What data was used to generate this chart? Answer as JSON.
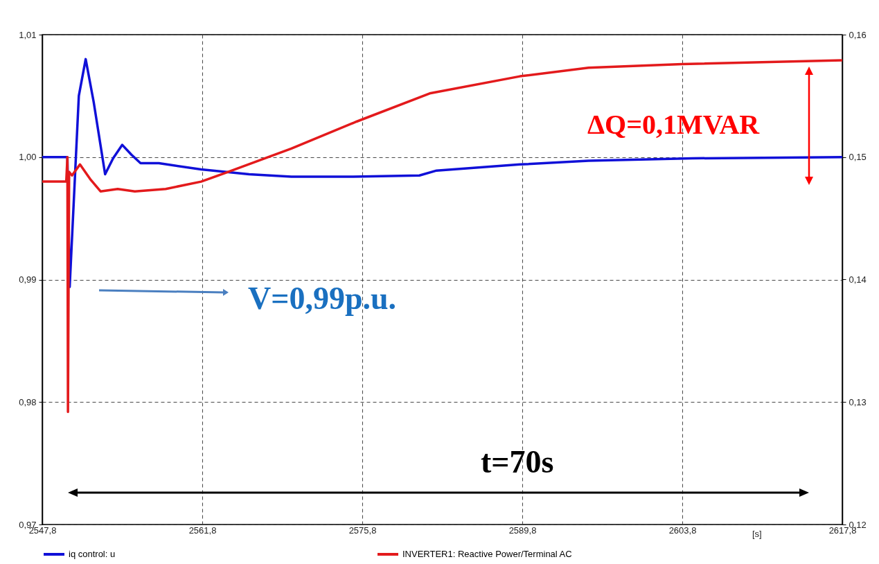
{
  "chart_data": {
    "type": "line",
    "xlabel": "[s]",
    "xlim": [
      2547.8,
      2617.8
    ],
    "xticks": [
      {
        "value": 2547.8,
        "label": "2547,8"
      },
      {
        "value": 2561.8,
        "label": "2561,8"
      },
      {
        "value": 2575.8,
        "label": "2575,8"
      },
      {
        "value": 2589.8,
        "label": "2589,8"
      },
      {
        "value": 2603.8,
        "label": "2603,8"
      },
      {
        "value": 2617.8,
        "label": "2617,8"
      }
    ],
    "ylim": [
      0.97,
      1.01
    ],
    "yticks": [
      {
        "value": 0.97,
        "label": "0,97"
      },
      {
        "value": 0.98,
        "label": "0,98"
      },
      {
        "value": 0.99,
        "label": "0,99"
      },
      {
        "value": 1.0,
        "label": "1,00"
      },
      {
        "value": 1.01,
        "label": "1,01"
      }
    ],
    "y2lim": [
      0.12,
      0.16
    ],
    "y2ticks": [
      {
        "value": 0.12,
        "label": "0,12"
      },
      {
        "value": 0.13,
        "label": "0,13"
      },
      {
        "value": 0.14,
        "label": "0,14"
      },
      {
        "value": 0.15,
        "label": "0,15"
      },
      {
        "value": 0.16,
        "label": "0,16"
      }
    ],
    "grid": true,
    "legend": "bottom",
    "series": [
      {
        "name": "iq control: u",
        "color": "#1010d8",
        "x": [
          2547.8,
          2550.0,
          2550.2,
          2551.0,
          2551.6,
          2552.3,
          2553.3,
          2554.0,
          2554.8,
          2555.6,
          2556.4,
          2558.0,
          2561.7,
          2565.9,
          2569.6,
          2575.0,
          2580.8,
          2582.3,
          2589.6,
          2595.6,
          2604.7,
          2617.8
        ],
        "values": [
          1.0,
          1.0,
          0.9894,
          1.005,
          1.008,
          1.0045,
          0.9986,
          0.9999,
          1.001,
          1.0002,
          0.9995,
          0.9995,
          0.999,
          0.9986,
          0.9984,
          0.9984,
          0.9985,
          0.9989,
          0.9994,
          0.9997,
          0.9999,
          1.0
        ]
      },
      {
        "name": "INVERTER1: Reactive Power/Terminal AC",
        "color": "#e31a1c",
        "axis": "y2",
        "x": [
          2547.8,
          2549.9,
          2550.0,
          2550.05,
          2550.15,
          2550.4,
          2551.1,
          2552.0,
          2552.9,
          2554.4,
          2555.9,
          2558.6,
          2561.7,
          2564.1,
          2569.6,
          2575.3,
          2581.7,
          2589.6,
          2595.6,
          2603.8,
          2617.8
        ],
        "values": [
          0.148,
          0.148,
          0.15,
          0.1292,
          0.1488,
          0.1485,
          0.1494,
          0.1482,
          0.1472,
          0.1474,
          0.1472,
          0.1474,
          0.148,
          0.1488,
          0.1507,
          0.1529,
          0.1552,
          0.1566,
          0.1573,
          0.1576,
          0.1579
        ]
      }
    ],
    "annotations": [
      "V=0,99p.u.",
      "ΔQ=0,1MVAR",
      "t=70s"
    ]
  }
}
